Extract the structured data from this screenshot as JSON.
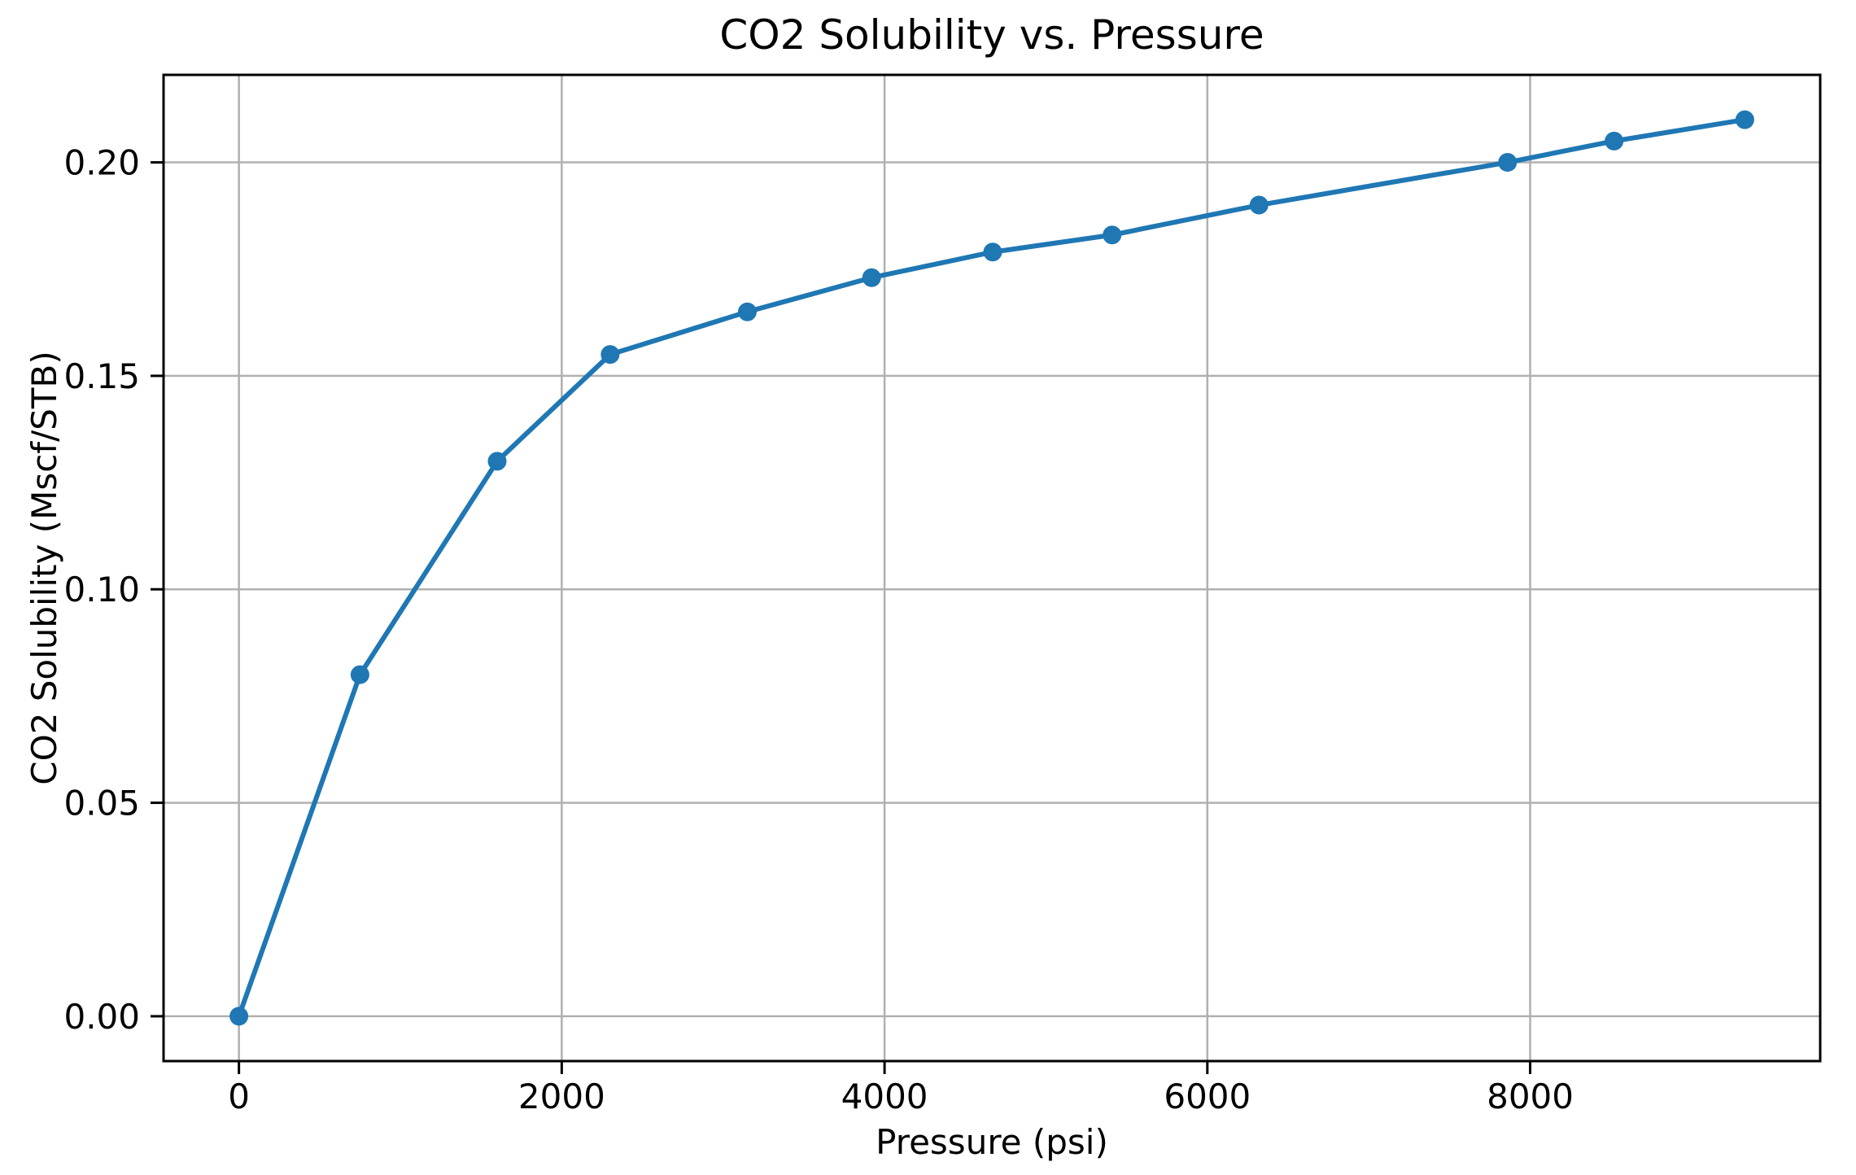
{
  "chart_data": {
    "type": "line",
    "title": "CO2 Solubility vs. Pressure",
    "xlabel": "Pressure (psi)",
    "ylabel": "CO2 Solubility (Mscf/STB)",
    "series": [
      {
        "name": "CO2 solubility",
        "x": [
          0,
          750,
          1600,
          2300,
          3150,
          3920,
          4670,
          5410,
          6320,
          7860,
          8520,
          9330
        ],
        "y": [
          0.0,
          0.08,
          0.13,
          0.155,
          0.165,
          0.173,
          0.179,
          0.183,
          0.19,
          0.2,
          0.205,
          0.21
        ]
      }
    ],
    "xticks": [
      0,
      2000,
      4000,
      6000,
      8000
    ],
    "xtick_labels": [
      "0",
      "2000",
      "4000",
      "6000",
      "8000"
    ],
    "yticks": [
      0.0,
      0.05,
      0.1,
      0.15,
      0.2
    ],
    "ytick_labels": [
      "0.00",
      "0.05",
      "0.10",
      "0.15",
      "0.20"
    ],
    "xlim": [
      -467,
      9797
    ],
    "ylim": [
      -0.0105,
      0.2205
    ],
    "grid": true,
    "legend": "none",
    "line_color": "#1f77b4",
    "marker": "o",
    "marker_color": "#1f77b4",
    "grid_color": "#b0b0b0",
    "spine_color": "#000000",
    "text_color": "#000000",
    "background_color": "#ffffff"
  }
}
